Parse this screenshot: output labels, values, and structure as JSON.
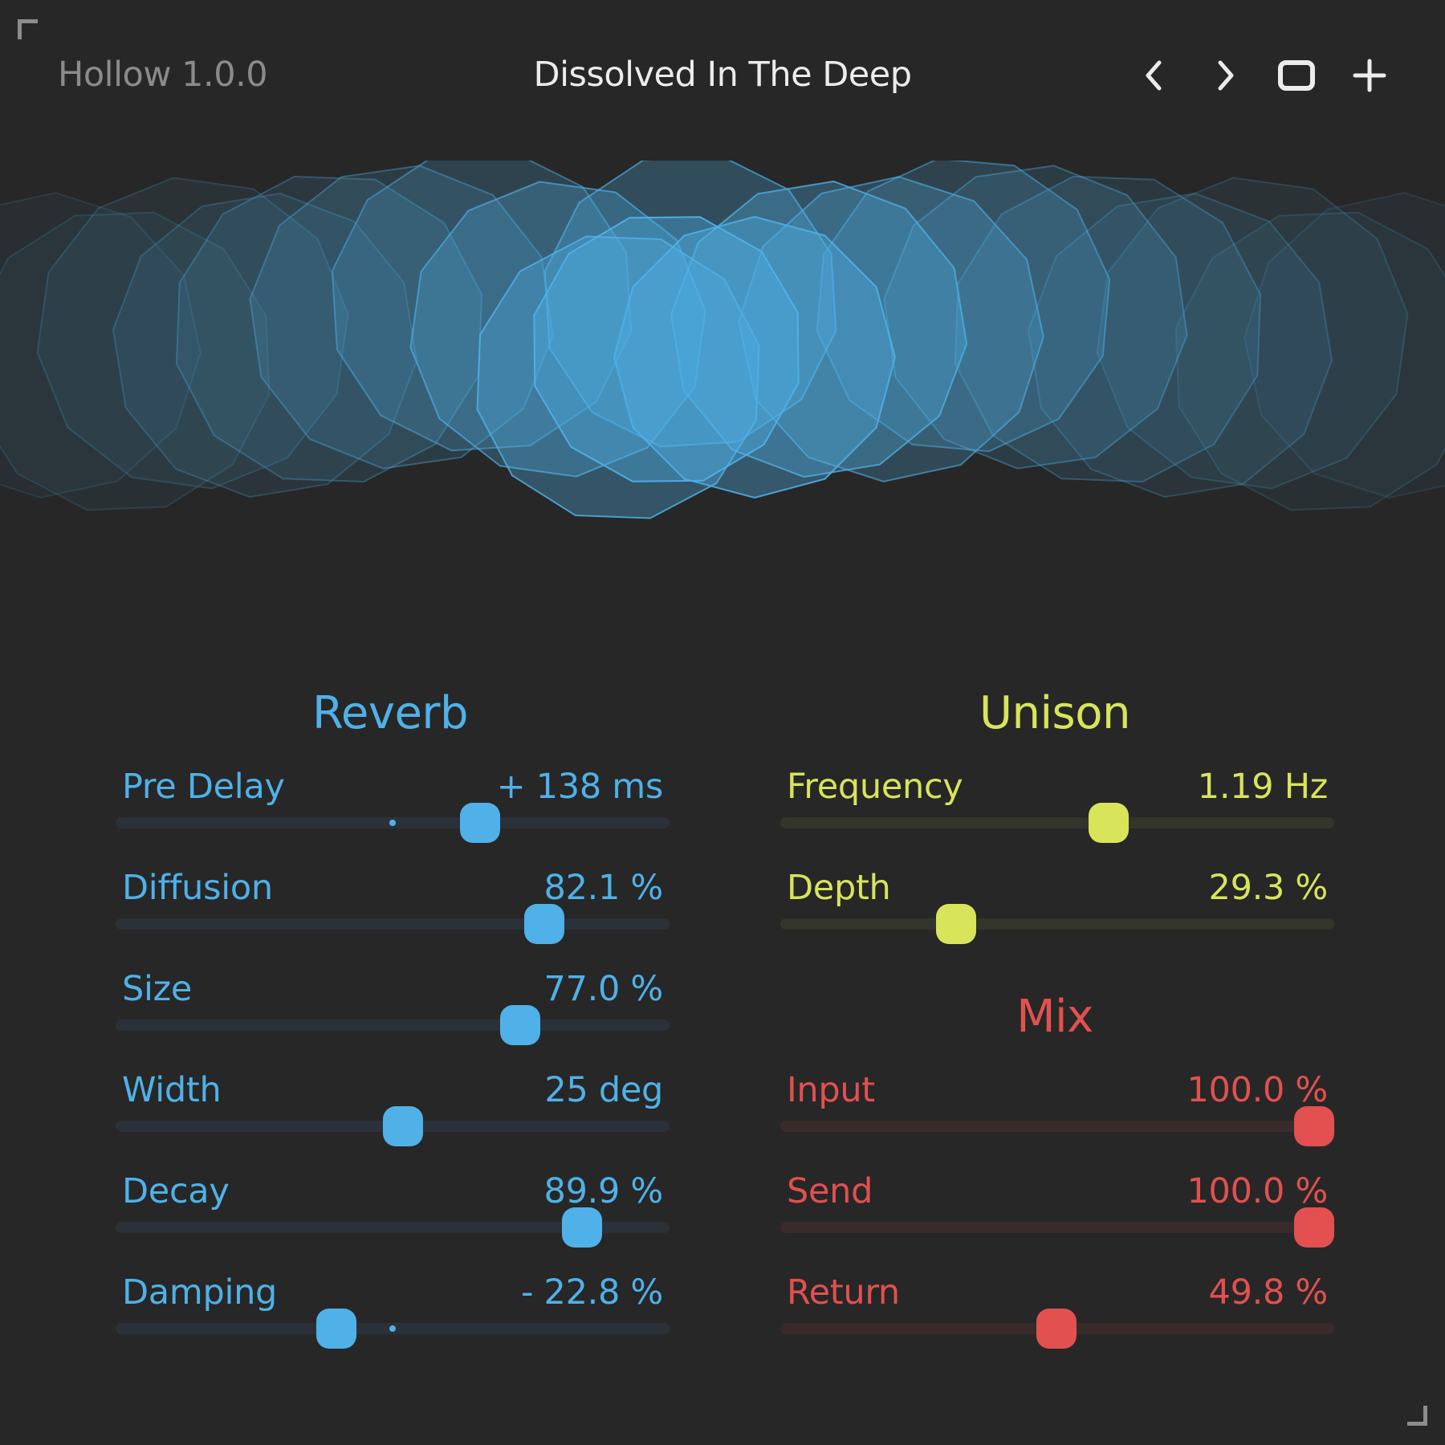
{
  "header": {
    "app_title": "Hollow 1.0.0",
    "preset_name": "Dissolved In The Deep",
    "buttons": [
      {
        "name": "prev-preset-button",
        "icon": "chevron-left-icon"
      },
      {
        "name": "next-preset-button",
        "icon": "chevron-right-icon"
      },
      {
        "name": "window-button",
        "icon": "square-icon"
      },
      {
        "name": "add-preset-button",
        "icon": "plus-icon"
      }
    ]
  },
  "colors": {
    "background": "#272727",
    "reverb": "#4fb1e8",
    "unison": "#d8e45a",
    "mix": "#e25050",
    "reverb_track": "#2a3138",
    "unison_track": "#33352a",
    "mix_track": "#392b2b"
  },
  "reverb": {
    "title": "Reverb",
    "params": [
      {
        "label": "Pre Delay",
        "value": "+ 138 ms",
        "fraction": 0.67,
        "bipolar": true
      },
      {
        "label": "Diffusion",
        "value": "82.1 %",
        "fraction": 0.795,
        "bipolar": false
      },
      {
        "label": "Size",
        "value": "77.0 %",
        "fraction": 0.748,
        "bipolar": false
      },
      {
        "label": "Width",
        "value": "25 deg",
        "fraction": 0.52,
        "bipolar": false
      },
      {
        "label": "Decay",
        "value": "89.9 %",
        "fraction": 0.868,
        "bipolar": false
      },
      {
        "label": "Damping",
        "value": "- 22.8 %",
        "fraction": 0.39,
        "bipolar": true
      }
    ]
  },
  "unison": {
    "title": "Unison",
    "params": [
      {
        "label": "Frequency",
        "value": "1.19 Hz",
        "fraction": 0.6,
        "bipolar": false
      },
      {
        "label": "Depth",
        "value": "29.3 %",
        "fraction": 0.303,
        "bipolar": false
      }
    ]
  },
  "mix": {
    "title": "Mix",
    "params": [
      {
        "label": "Input",
        "value": "100.0 %",
        "fraction": 1.0,
        "bipolar": false
      },
      {
        "label": "Send",
        "value": "100.0 %",
        "fraction": 1.0,
        "bipolar": false
      },
      {
        "label": "Return",
        "value": "49.8 %",
        "fraction": 0.498,
        "bipolar": false
      }
    ]
  }
}
